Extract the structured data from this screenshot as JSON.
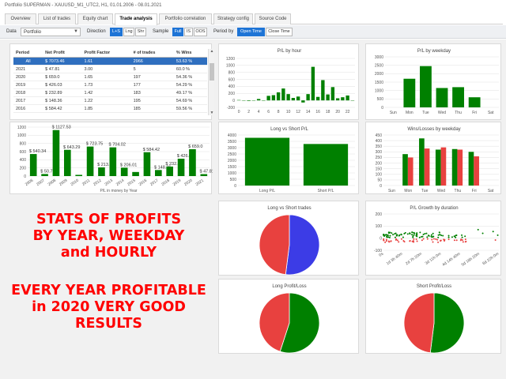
{
  "window": {
    "title": "Portfolio SUPERMAN - XAUUSD_M1_UTC2, H1, 01.01.2006 - 08.01.2021"
  },
  "tabs": [
    {
      "label": "Overview",
      "active": false
    },
    {
      "label": "List of trades",
      "active": false
    },
    {
      "label": "Equity chart",
      "active": false
    },
    {
      "label": "Trade analysis",
      "active": true
    },
    {
      "label": "Portfolio correlation",
      "active": false
    },
    {
      "label": "Strategy config",
      "active": false
    },
    {
      "label": "Source Code",
      "active": false
    }
  ],
  "toolbar": {
    "data_label": "Data",
    "data_value": "Portfolio",
    "direction_label": "Direction",
    "direction_options": [
      {
        "label": "L+S",
        "selected": true
      },
      {
        "label": "Lng",
        "selected": false
      },
      {
        "label": "Shr",
        "selected": false
      }
    ],
    "sample_label": "Sample",
    "sample_options": [
      {
        "label": "Full",
        "selected": true
      },
      {
        "label": "IS",
        "selected": false
      },
      {
        "label": "OOS",
        "selected": false
      }
    ],
    "period_label": "Period by",
    "period_options": [
      {
        "label": "Open Time",
        "selected": true
      },
      {
        "label": "Close Time",
        "selected": false
      }
    ]
  },
  "colors": {
    "green": "#008000",
    "red": "#e8413f",
    "blue": "#3c3ce6",
    "accent": "#1e74d6"
  },
  "year_table": {
    "columns": [
      "Period",
      "Net Profit",
      "Profit Factor",
      "# of trades",
      "% Wins"
    ],
    "rows": [
      [
        "All",
        "$ 7073.46",
        "1.61",
        "2966",
        "53.63 %"
      ],
      [
        "2021",
        "$ 47.81",
        "3.00",
        "5",
        "60.0 %"
      ],
      [
        "2020",
        "$ 659.0",
        "1.65",
        "197",
        "54.36 %"
      ],
      [
        "2019",
        "$ 426.03",
        "1.73",
        "177",
        "54.29 %"
      ],
      [
        "2018",
        "$ 232.89",
        "1.42",
        "183",
        "49.17 %"
      ],
      [
        "2017",
        "$ 148.36",
        "1.22",
        "195",
        "54.69 %"
      ],
      [
        "2016",
        "$ 584.42",
        "1.85",
        "185",
        "59.56 %"
      ]
    ],
    "selected_row": 0
  },
  "promo": {
    "line1": "STATS OF PROFITS",
    "line2": "BY YEAR, WEEKDAY",
    "line3": "and HOURLY",
    "line4": "EVERY YEAR PROFITABLE",
    "line5": "in 2020 VERY GOOD",
    "line6": "RESULTS"
  },
  "chart_data": [
    {
      "id": "pl_by_hour",
      "type": "bar",
      "title": "P/L by hour",
      "x": [
        0,
        1,
        2,
        3,
        4,
        5,
        6,
        7,
        8,
        9,
        10,
        11,
        12,
        13,
        14,
        15,
        16,
        17,
        18,
        19,
        20,
        21,
        22,
        23
      ],
      "values": [
        10,
        0,
        -15,
        0,
        40,
        -10,
        130,
        150,
        230,
        340,
        180,
        70,
        110,
        -60,
        180,
        960,
        100,
        580,
        170,
        380,
        60,
        90,
        140,
        0
      ],
      "ylim": [
        -200,
        1200
      ],
      "yticks": [
        -200,
        0,
        200,
        400,
        600,
        800,
        1000,
        1200
      ],
      "xticks": [
        "0",
        "2",
        "4",
        "6",
        "8",
        "10",
        "12",
        "14",
        "16",
        "18",
        "20",
        "22"
      ]
    },
    {
      "id": "pl_by_weekday",
      "type": "bar",
      "title": "P/L by weekday",
      "categories": [
        "Sun",
        "Mon",
        "Tue",
        "Wed",
        "Thu",
        "Fri",
        "Sat"
      ],
      "values": [
        0,
        1700,
        2450,
        1150,
        1200,
        600,
        0
      ],
      "ylim": [
        0,
        3000
      ],
      "yticks": [
        0,
        500,
        1000,
        1500,
        2000,
        2500,
        3000
      ]
    },
    {
      "id": "pl_by_year",
      "type": "bar",
      "title": "",
      "xlabel": "P/L in money by Year",
      "categories": [
        "2006",
        "2007",
        "2008",
        "2009",
        "2010",
        "2011",
        "2012",
        "2013",
        "2014",
        "2015",
        "2016",
        "2017",
        "2018",
        "2019",
        "2020",
        "2021"
      ],
      "values": [
        540.34,
        50.71,
        1127.53,
        643.29,
        30,
        723.75,
        213.1,
        704.02,
        206.01,
        100,
        584.42,
        148.36,
        232.89,
        426.03,
        659.0,
        47.81
      ],
      "data_labels": [
        "$ 540.34",
        "$ 50.71",
        "$ 1127.53",
        "$ 643.29",
        "",
        "$ 723.75",
        "$ 213.1",
        "$ 704.02",
        "$ 206.01",
        "",
        "$ 584.42",
        "$ 148.36",
        "$ 232.89",
        "$ 426.03",
        "$ 659.0",
        "$ 47.81"
      ],
      "ylim": [
        0,
        1200
      ],
      "yticks": [
        0,
        200,
        400,
        600,
        800,
        1000,
        1200
      ]
    },
    {
      "id": "long_short_pl",
      "type": "bar",
      "title": "Long vs Short P/L",
      "categories": [
        "Long P/L",
        "Short P/L"
      ],
      "values": [
        3780,
        3290
      ],
      "ylim": [
        0,
        4000
      ],
      "yticks": [
        0,
        500,
        1000,
        1500,
        2000,
        2500,
        3000,
        3500,
        4000
      ]
    },
    {
      "id": "wins_losses_weekday",
      "type": "bar",
      "title": "Wins/Losses by weekday",
      "categories": [
        "Sun",
        "Mon",
        "Tue",
        "Wed",
        "Thu",
        "Fri",
        "Sat"
      ],
      "series": [
        {
          "values": [
            0,
            280,
            420,
            320,
            325,
            300,
            0
          ]
        },
        {
          "values": [
            0,
            250,
            330,
            340,
            320,
            260,
            0
          ]
        }
      ],
      "ylim": [
        0,
        450
      ],
      "yticks": [
        0,
        50,
        100,
        150,
        200,
        250,
        300,
        350,
        400,
        450
      ]
    },
    {
      "id": "long_vs_short_trades",
      "type": "pie",
      "title": "Long vs Short trades",
      "values": [
        52,
        48
      ]
    },
    {
      "id": "pl_growth_duration",
      "type": "scatter",
      "title": "P/L Growth by duration",
      "ylim": [
        -100,
        200
      ],
      "yticks": [
        -100,
        -50,
        0,
        50,
        100,
        150,
        200
      ],
      "xticks": [
        "0s",
        "1d 3h 40m",
        "2d 7h 20m",
        "3d 11h 0m",
        "4d 14h 40m",
        "5d 18h 20m",
        "6d 22h 0m"
      ]
    },
    {
      "id": "long_profit_loss",
      "type": "pie",
      "title": "Long Profit/Loss",
      "values": [
        55,
        45
      ]
    },
    {
      "id": "short_profit_loss",
      "type": "pie",
      "title": "Short Profit/Loss",
      "values": [
        52,
        48
      ]
    }
  ]
}
